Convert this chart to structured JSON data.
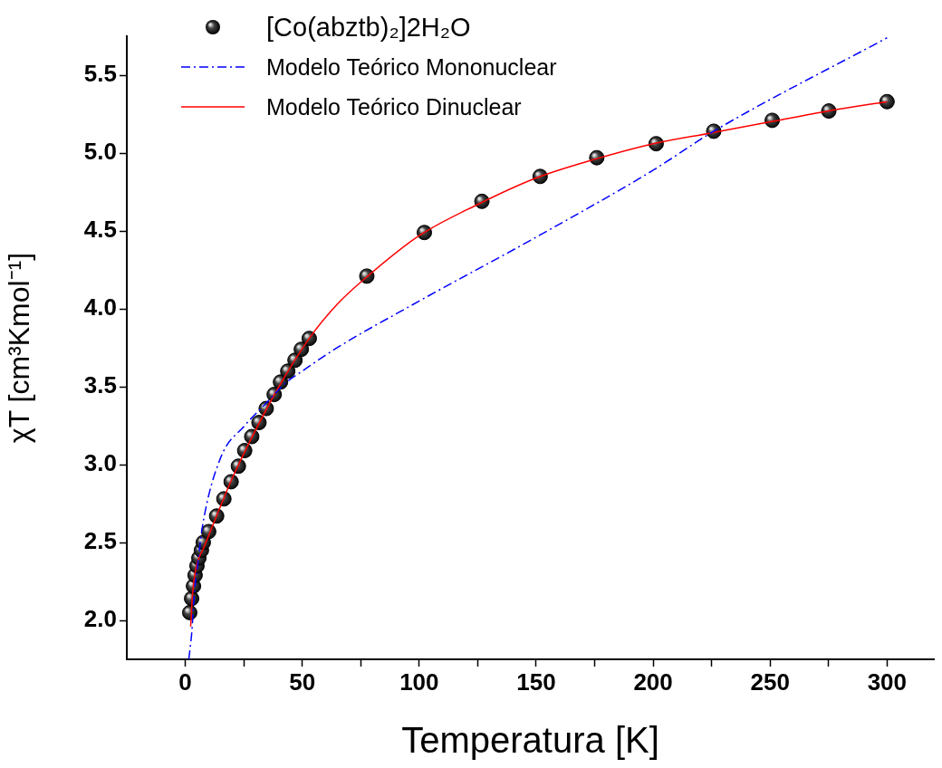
{
  "chart_data": {
    "type": "scatter",
    "xlabel": "Temperatura [K]",
    "ylabel": "χT [cm³Kmol⁻¹]",
    "xlim": [
      -25,
      320
    ],
    "ylim": [
      1.75,
      5.75
    ],
    "xticks": [
      0,
      {
        "value": 25,
        "label": null
      },
      50,
      {
        "value": 75,
        "label": null
      },
      100,
      {
        "value": 125,
        "label": null
      },
      150,
      {
        "value": 175,
        "label": null
      },
      200,
      {
        "value": 225,
        "label": null
      },
      250,
      {
        "value": 275,
        "label": null
      },
      300
    ],
    "yticks": [
      {
        "value": 2,
        "label": "2.0"
      },
      2.5,
      {
        "value": 3,
        "label": "3.0"
      },
      3.5,
      {
        "value": 4,
        "label": "4.0"
      },
      4.5,
      {
        "value": 5,
        "label": "5.0"
      },
      5.5
    ],
    "grid": false,
    "legend": "top left",
    "series": [
      {
        "name": "[Co(abztb)₂]2H₂O",
        "marker": "circle",
        "color": "#000000",
        "x": [
          1.9,
          2.7,
          3.5,
          4.2,
          5.0,
          5.8,
          6.9,
          7.7,
          10,
          13.4,
          16.5,
          19.6,
          22.7,
          25.4,
          28.4,
          31.5,
          34.6,
          38.0,
          40.7,
          43.8,
          46.9,
          49.6,
          53.0,
          77.6,
          102.2,
          126.8,
          151.7,
          175.9,
          201.3,
          225.9,
          250.9,
          275.1,
          300.0
        ],
        "values": [
          2.05,
          2.14,
          2.22,
          2.29,
          2.35,
          2.4,
          2.45,
          2.5,
          2.57,
          2.67,
          2.78,
          2.89,
          2.99,
          3.09,
          3.18,
          3.27,
          3.36,
          3.45,
          3.53,
          3.6,
          3.67,
          3.74,
          3.81,
          4.21,
          4.49,
          4.69,
          4.85,
          4.97,
          5.06,
          5.14,
          5.21,
          5.27,
          5.33
        ]
      },
      {
        "name": "Modelo Teórico Mononuclear",
        "type": "line",
        "marker": "none",
        "line_style": "dashdot",
        "color": "#0000ff",
        "x": [
          1.5,
          2.7,
          3,
          4,
          5,
          7.3,
          15,
          25.4,
          33,
          43.4,
          50,
          63.8,
          100,
          150,
          200,
          225.9,
          300
        ],
        "values": [
          1.75,
          1.91,
          1.97,
          2.2,
          2.32,
          2.6,
          3.04,
          3.25,
          3.37,
          3.53,
          3.6,
          3.74,
          4.05,
          4.46,
          4.89,
          5.14,
          5.74
        ]
      },
      {
        "name": "Modelo Teórico Dinuclear",
        "type": "line",
        "marker": "none",
        "line_style": "solid",
        "color": "#ff0000",
        "x": [
          2.3,
          3,
          4.5,
          8,
          12,
          20,
          30,
          40,
          53,
          65,
          78,
          100,
          125,
          150,
          175,
          200,
          225,
          250,
          275,
          300
        ],
        "values": [
          1.96,
          2.15,
          2.33,
          2.47,
          2.62,
          2.91,
          3.22,
          3.5,
          3.81,
          4.03,
          4.21,
          4.47,
          4.67,
          4.84,
          4.96,
          5.06,
          5.13,
          5.2,
          5.27,
          5.33
        ]
      }
    ]
  }
}
